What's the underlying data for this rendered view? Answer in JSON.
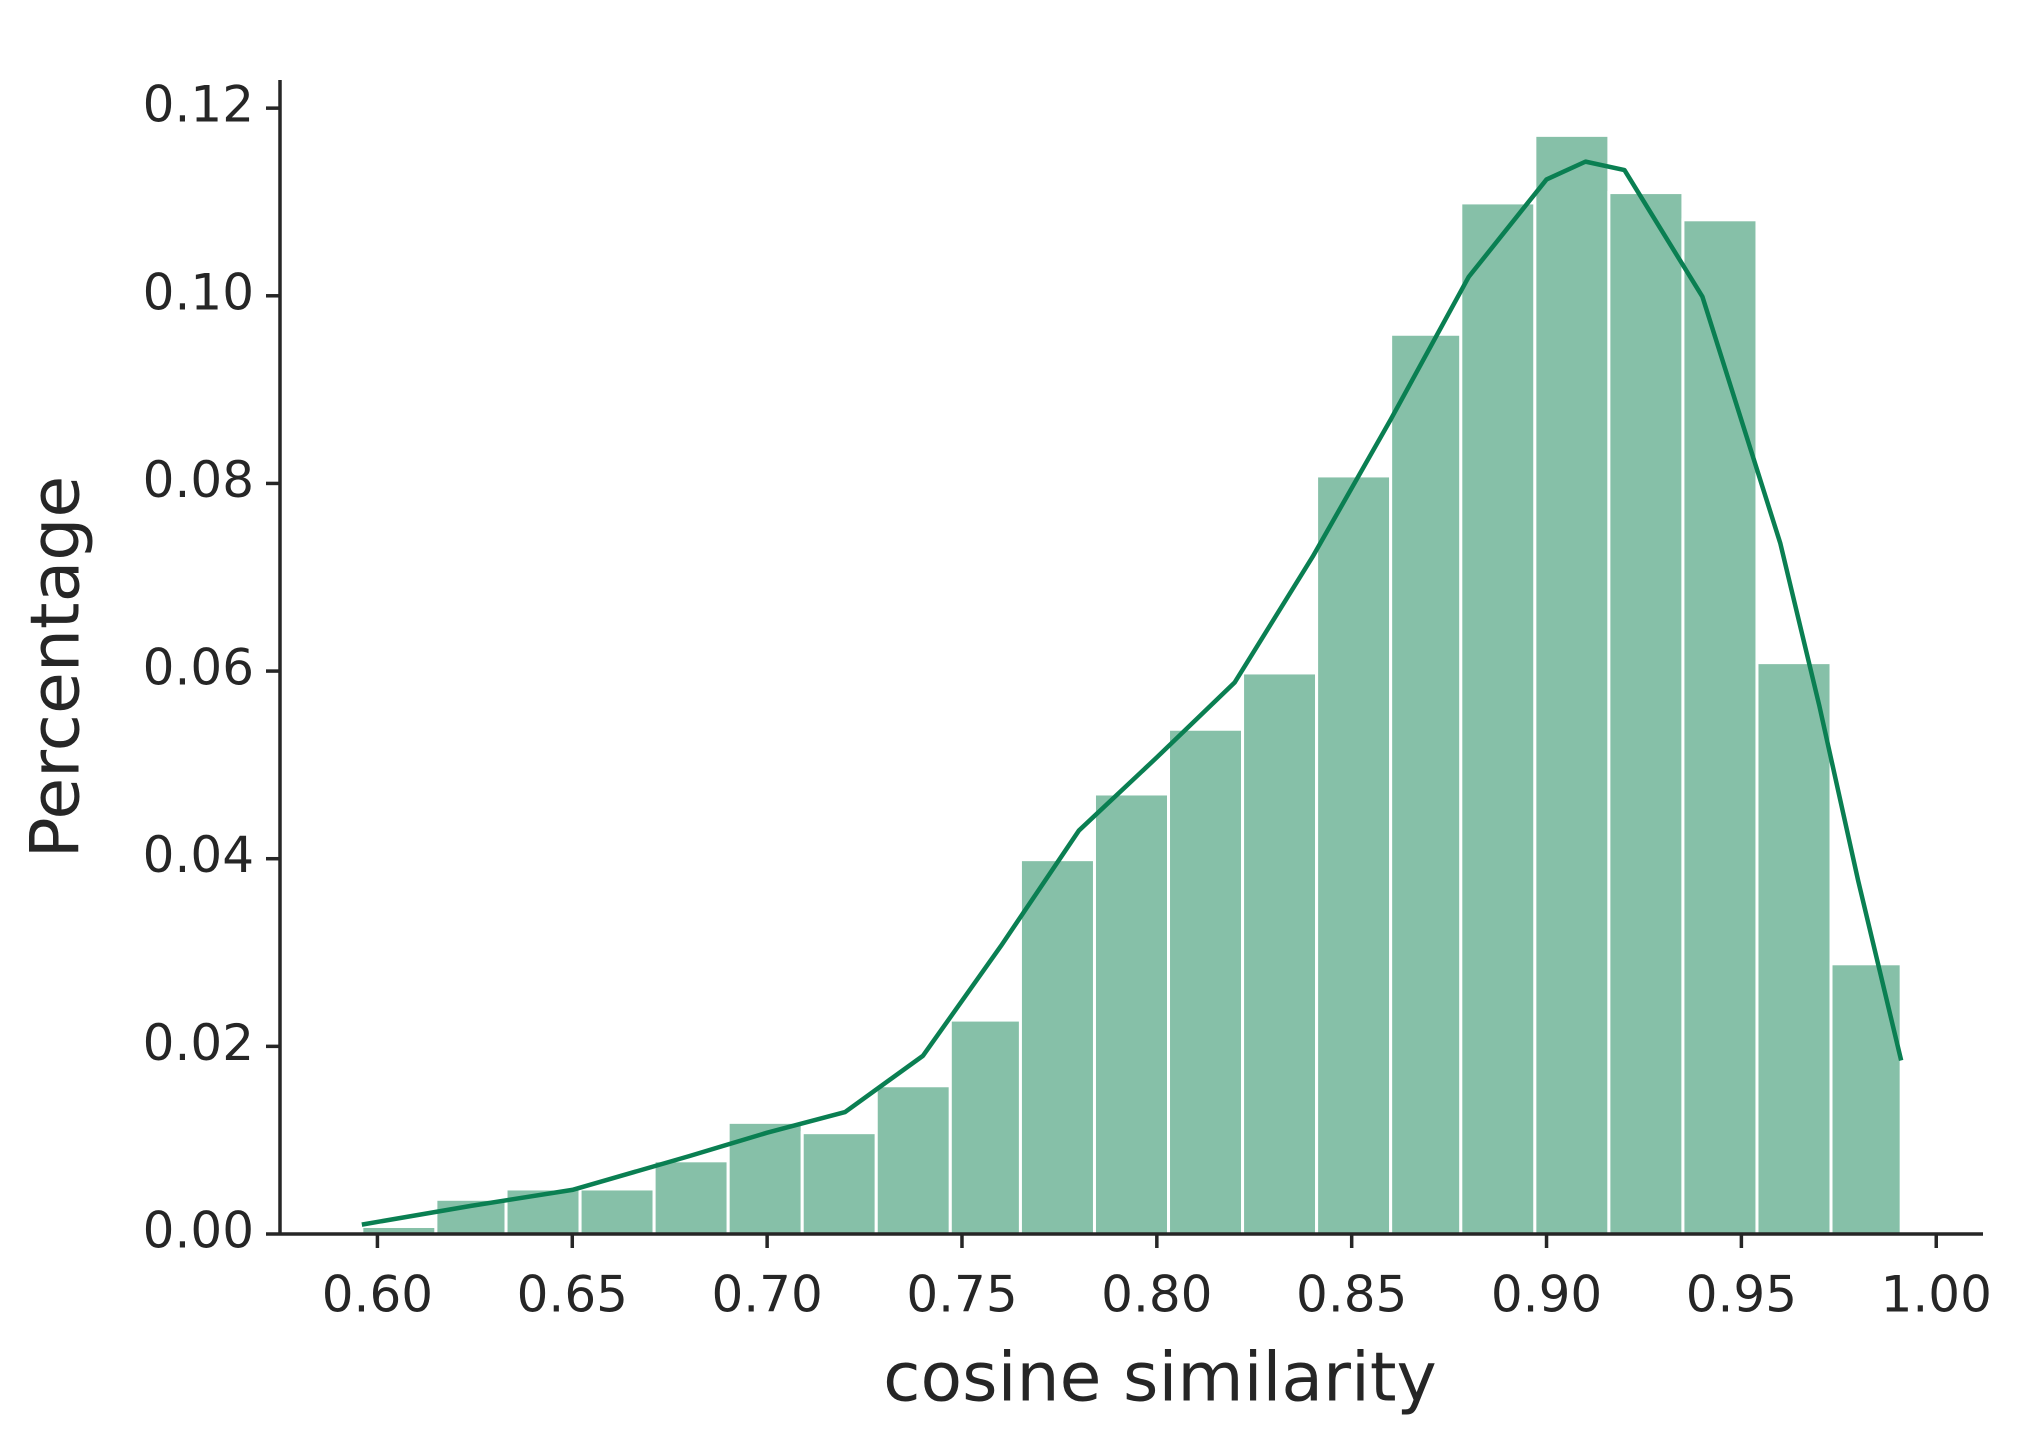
{
  "chart_data": {
    "type": "histogram",
    "xlabel": "cosine similarity",
    "ylabel": "Percentage",
    "bins": [
      0.596,
      0.615,
      0.633,
      0.652,
      0.671,
      0.69,
      0.709,
      0.728,
      0.747,
      0.765,
      0.784,
      0.803,
      0.822,
      0.841,
      0.86,
      0.878,
      0.897,
      0.916,
      0.935,
      0.954,
      0.973,
      0.991
    ],
    "values": [
      0.0008,
      0.0037,
      0.0048,
      0.0048,
      0.0078,
      0.0119,
      0.0108,
      0.0158,
      0.0228,
      0.0399,
      0.0469,
      0.0538,
      0.0598,
      0.0808,
      0.0959,
      0.1099,
      0.1171,
      0.111,
      0.1081,
      0.0609,
      0.0288
    ],
    "color": "#86c0a8",
    "kde": {
      "color": "#0a7f52",
      "x": [
        0.596,
        0.624,
        0.65,
        0.68,
        0.7,
        0.72,
        0.74,
        0.76,
        0.78,
        0.8,
        0.82,
        0.84,
        0.86,
        0.88,
        0.9,
        0.91,
        0.92,
        0.94,
        0.96,
        0.97,
        0.98,
        0.991
      ],
      "values": [
        0.001,
        0.003,
        0.0047,
        0.0083,
        0.0108,
        0.013,
        0.019,
        0.0307,
        0.043,
        0.0508,
        0.0588,
        0.0722,
        0.0868,
        0.102,
        0.1124,
        0.1143,
        0.1134,
        0.0999,
        0.0736,
        0.0563,
        0.0376,
        0.0185
      ]
    },
    "xlim": [
      0.575,
      1.012
    ],
    "ylim": [
      0,
      0.123
    ],
    "xticks": [
      {
        "value": 0.6,
        "label": "0.60"
      },
      {
        "value": 0.65,
        "label": "0.65"
      },
      {
        "value": 0.7,
        "label": "0.70"
      },
      {
        "value": 0.75,
        "label": "0.75"
      },
      {
        "value": 0.8,
        "label": "0.80"
      },
      {
        "value": 0.85,
        "label": "0.85"
      },
      {
        "value": 0.9,
        "label": "0.90"
      },
      {
        "value": 0.95,
        "label": "0.95"
      },
      {
        "value": 1.0,
        "label": "1.00"
      }
    ],
    "yticks": [
      {
        "value": 0,
        "label": "0.00"
      },
      {
        "value": 0.02,
        "label": "0.02"
      },
      {
        "value": 0.04,
        "label": "0.04"
      },
      {
        "value": 0.06,
        "label": "0.06"
      },
      {
        "value": 0.08,
        "label": "0.08"
      },
      {
        "value": 0.1,
        "label": "0.10"
      },
      {
        "value": 0.12,
        "label": "0.12"
      }
    ],
    "grid": false
  }
}
